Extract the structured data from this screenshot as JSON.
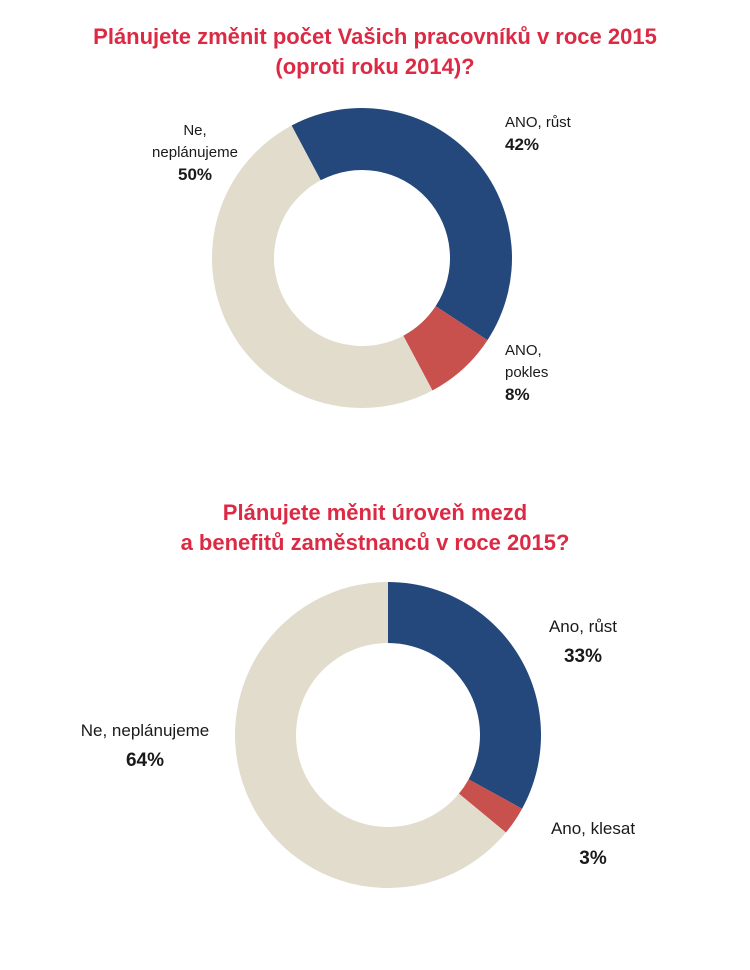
{
  "chart_data": [
    {
      "type": "pie",
      "title_lines": [
        "Plánujete změnit počet Vašich pracovníků v roce 2015",
        "(oproti roku 2014)?"
      ],
      "slices": [
        {
          "label_lines": [
            "ANO, růst"
          ],
          "value": 42,
          "value_label": "42%",
          "color": "#24487c"
        },
        {
          "label_lines": [
            "ANO,",
            "pokles"
          ],
          "value": 8,
          "value_label": "8%",
          "color": "#c8504d"
        },
        {
          "label_lines": [
            "Ne,",
            "neplánujeme"
          ],
          "value": 50,
          "value_label": "50%",
          "color": "#e1dccb"
        }
      ]
    },
    {
      "type": "pie",
      "title_lines": [
        "Plánujete měnit úroveň mezd",
        "a benefitů zaměstnanců v roce 2015?"
      ],
      "slices": [
        {
          "label_lines": [
            "Ano, růst"
          ],
          "value": 33,
          "value_label": "33%",
          "color": "#24487c"
        },
        {
          "label_lines": [
            "Ano, klesat"
          ],
          "value": 3,
          "value_label": "3%",
          "color": "#c8504d"
        },
        {
          "label_lines": [
            "Ne, neplánujeme"
          ],
          "value": 64,
          "value_label": "64%",
          "color": "#e1dccb"
        }
      ]
    }
  ]
}
